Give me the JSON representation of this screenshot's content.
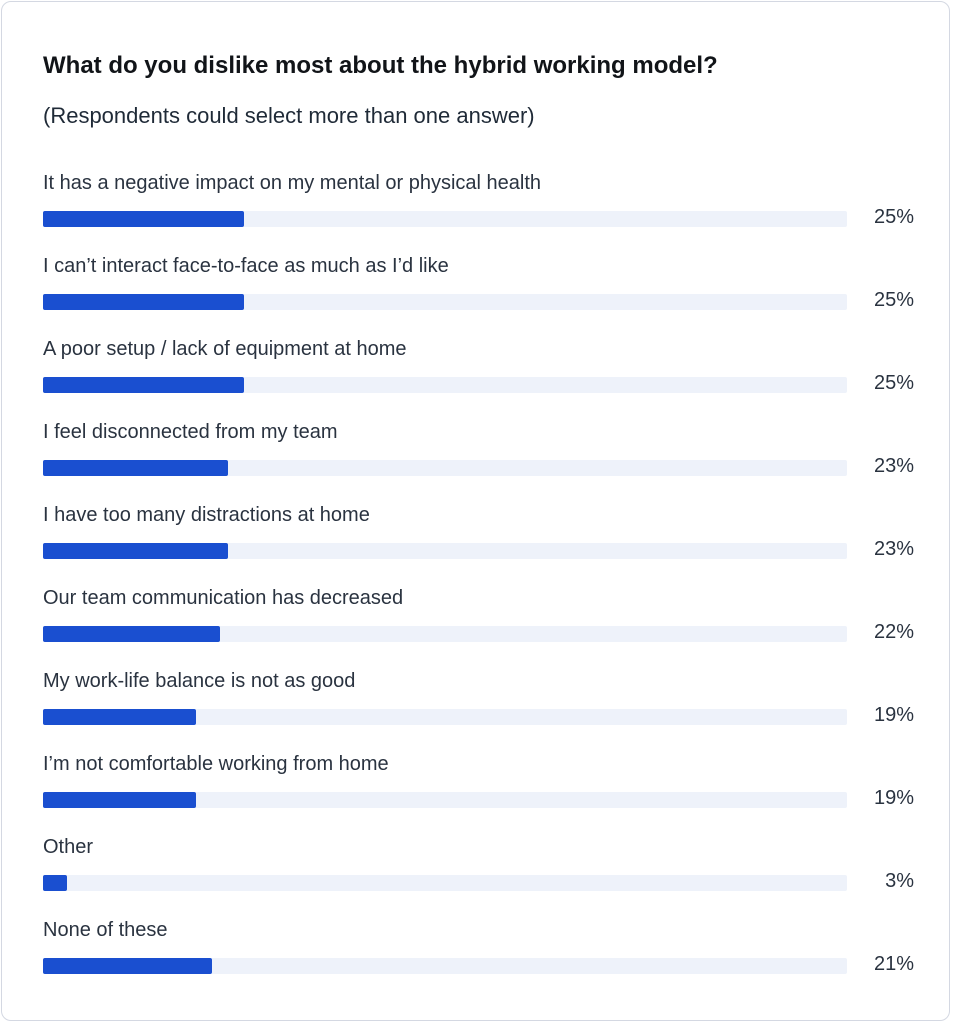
{
  "chart_data": {
    "type": "bar",
    "orientation": "horizontal",
    "title": "What do you dislike most about the hybrid working model?",
    "subtitle": "(Respondents could select more than one answer)",
    "categories": [
      "It has a negative impact on my mental or physical health",
      "I can’t interact face-to-face as much as I’d like",
      "A poor setup / lack of equipment at home",
      "I feel disconnected from my team",
      "I have too many distractions at home",
      "Our team communication has decreased",
      "My work-life balance is not as good",
      "I’m not comfortable working from home",
      "Other",
      "None of these"
    ],
    "values": [
      25,
      25,
      25,
      23,
      23,
      22,
      19,
      19,
      3,
      21
    ],
    "value_labels": [
      "25%",
      "25%",
      "25%",
      "23%",
      "23%",
      "22%",
      "19%",
      "19%",
      "3%",
      "21%"
    ],
    "xlim": [
      0,
      100
    ],
    "grid": false,
    "legend": "none",
    "colors": {
      "bar": "#1a4fd0",
      "track": "#eef2fa"
    }
  }
}
